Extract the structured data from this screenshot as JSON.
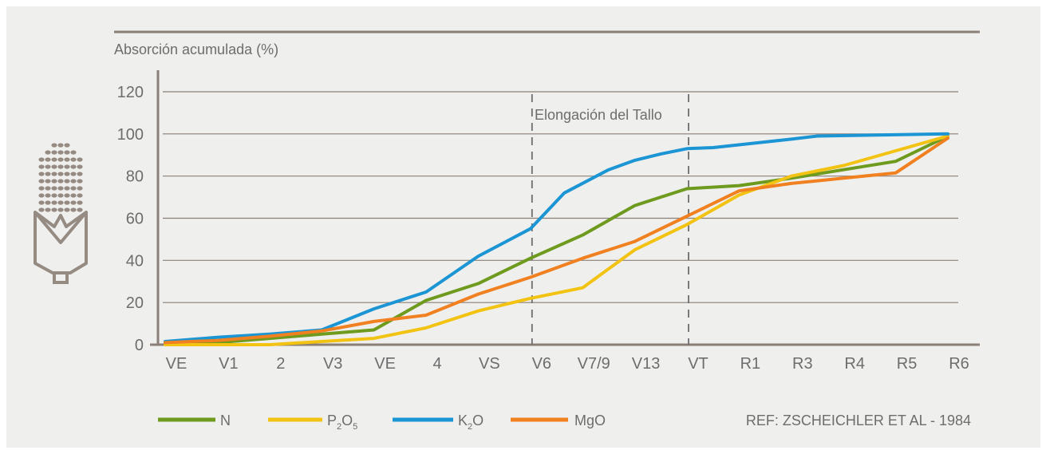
{
  "chart_data": {
    "type": "line",
    "title": "",
    "ylabel": "Absorción acumulada (%)",
    "xlabel": "",
    "ylim": [
      0,
      120
    ],
    "yticks": [
      "0",
      "20",
      "40",
      "60",
      "80",
      "100",
      "120"
    ],
    "categories": [
      "VE",
      "V1",
      "2",
      "V3",
      "VE",
      "4",
      "VS",
      "V6",
      "V7/9",
      "V13",
      "VT",
      "R1",
      "R3",
      "R4",
      "R5",
      "R6"
    ],
    "annotation": "Elongación del Tallo",
    "series": [
      {
        "name": "N",
        "color": "#6e9a1e",
        "x": [
          0,
          1,
          2,
          3,
          4,
          5,
          6,
          7,
          8,
          9,
          10,
          11,
          12,
          13,
          14,
          15
        ],
        "y": [
          0.5,
          1,
          3,
          5,
          7,
          21,
          29,
          41,
          52,
          66,
          74,
          75.5,
          79,
          83,
          87,
          99
        ]
      },
      {
        "name": "P2O5",
        "name_main": "P",
        "sub1": "2",
        "name_mid": "O",
        "sub2": "5",
        "color": "#f2c313",
        "x": [
          0,
          1,
          2,
          3,
          4,
          5,
          6,
          7,
          8,
          9,
          10,
          11,
          12,
          13,
          14,
          15
        ],
        "y": [
          0,
          0,
          0,
          1.5,
          3,
          8,
          16,
          22,
          27,
          45,
          57,
          71,
          80,
          85,
          92,
          99
        ]
      },
      {
        "name": "K2O",
        "name_main": "K",
        "sub1": "2",
        "name_mid": "O",
        "color": "#1b95d3",
        "x": [
          0,
          1,
          2,
          3,
          4,
          5,
          6,
          7,
          7.65,
          8.5,
          9,
          9.5,
          10,
          10.5,
          12,
          12.5,
          15
        ],
        "y": [
          1.5,
          3.5,
          5,
          7,
          17,
          25,
          42,
          55,
          72,
          83,
          87.5,
          90.5,
          93,
          93.5,
          97.5,
          99,
          100
        ]
      },
      {
        "name": "MgO",
        "color": "#f08020",
        "x": [
          0,
          1,
          2,
          3,
          4,
          5,
          6,
          7,
          8,
          9,
          10,
          11,
          12,
          13,
          14,
          15
        ],
        "y": [
          1,
          2,
          4,
          6.5,
          11,
          14,
          24,
          32,
          41,
          49,
          61,
          73,
          76.5,
          79,
          81.5,
          98
        ]
      }
    ],
    "grid": true,
    "legend_position": "bottom-left",
    "reference": "REF: ZSCHEICHLER ET AL - 1984"
  }
}
